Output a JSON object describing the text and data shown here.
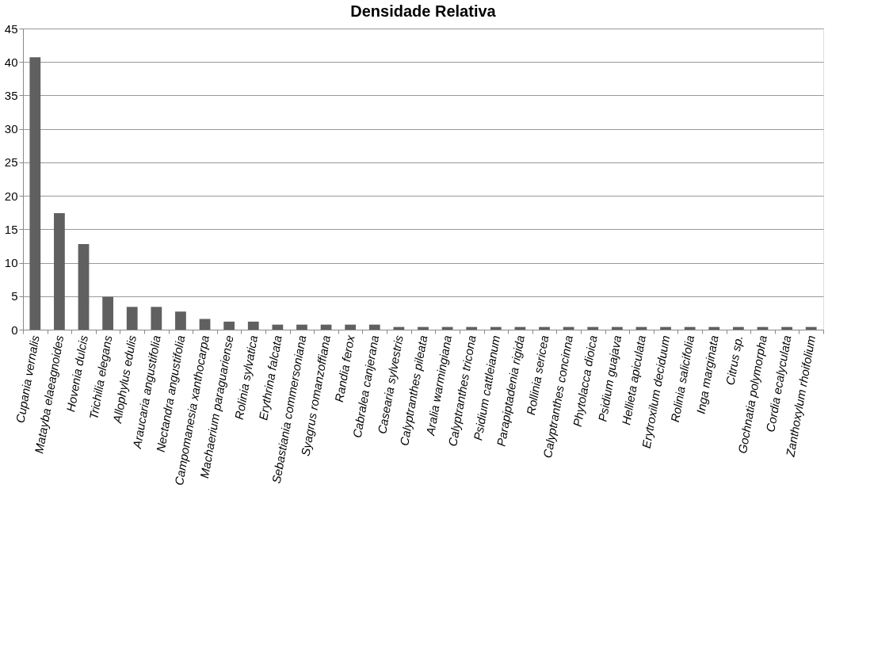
{
  "chart_data": {
    "type": "bar",
    "title": "Densidade Relativa",
    "categories": [
      "Cupania vernalis",
      "Matayba elaeagnoides",
      "Hovenia dulcis",
      "Trichilia elegans",
      "Allophylus edulis",
      "Araucaria angustifolia",
      "Nectandra angustifolia",
      "Campomanesia xanthocarpa",
      "Machaerium paraguariense",
      "Rolinia sylvatica",
      "Erythrina falcata",
      "Sebastiania commersoniana",
      "Syagrus romanzoffiana",
      "Randia ferox",
      "Cabralea canjerana",
      "Casearia sylvestris",
      "Calyptranthes pileata",
      "Aralia warmingiana",
      "Calyptranthes tricona",
      "Psidium cattleianum",
      "Parapiptadenia rigida",
      "Rollinia sericea",
      "Calyptranthes concinna",
      "Phytolacca dioica",
      "Psidium guajava",
      "Hellieta apiculata",
      "Erytroxilum deciduum",
      "Rolinia salicifolia",
      "Inga marginata",
      "Citrus sp.",
      "Gochnatia polymorpha",
      "Cordia ecalyculata",
      "Zanthoxylum rhoifolium"
    ],
    "values": [
      40.7,
      17.4,
      12.8,
      4.9,
      3.4,
      3.4,
      2.7,
      1.6,
      1.2,
      1.2,
      0.75,
      0.75,
      0.75,
      0.75,
      0.75,
      0.4,
      0.4,
      0.4,
      0.4,
      0.4,
      0.4,
      0.4,
      0.4,
      0.4,
      0.4,
      0.4,
      0.4,
      0.4,
      0.4,
      0.4,
      0.4,
      0.4,
      0.4
    ],
    "color": "#606060",
    "ylim": [
      0,
      45
    ],
    "yticks": [
      0,
      5,
      10,
      15,
      20,
      25,
      30,
      35,
      40,
      45
    ],
    "grid": "y"
  }
}
